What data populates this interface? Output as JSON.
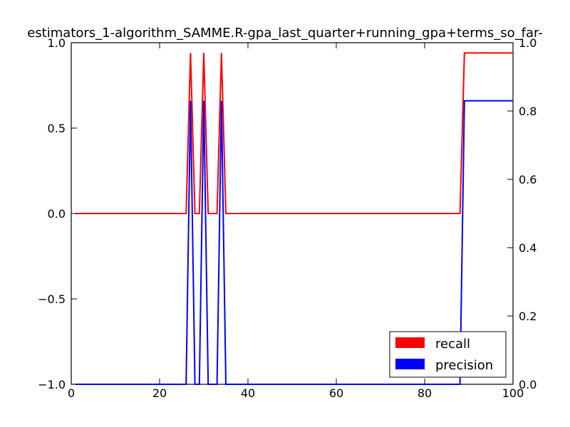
{
  "chart_data": {
    "type": "line",
    "title": "estimators_1-algorithm_SAMME.R-gpa_last_quarter+running_gpa+terms_so_far-",
    "xlabel": "",
    "ylabel": "",
    "xlim": [
      0,
      100
    ],
    "ylim_left": [
      -1.0,
      1.0
    ],
    "ylim_right": [
      0.0,
      1.0
    ],
    "x_ticks": [
      0,
      20,
      40,
      60,
      80,
      100
    ],
    "x_tick_labels": [
      "0",
      "20",
      "40",
      "60",
      "80",
      "100"
    ],
    "y_left_ticks": [
      -1.0,
      -0.5,
      0.0,
      0.5,
      1.0
    ],
    "y_left_tick_labels": [
      "−1.0",
      "−0.5",
      "0.0",
      "0.5",
      "1.0"
    ],
    "y_right_ticks": [
      0.0,
      0.2,
      0.4,
      0.6,
      0.8,
      1.0
    ],
    "y_right_tick_labels": [
      "0.0",
      "0.2",
      "0.4",
      "0.6",
      "0.8",
      "1.0"
    ],
    "grid": false,
    "legend_position": "bottom-right",
    "series": [
      {
        "name": "recall",
        "color": "#ff0000",
        "axis": "left",
        "points": [
          [
            1,
            0.0
          ],
          [
            26,
            0.0
          ],
          [
            27,
            0.94
          ],
          [
            28,
            0.0
          ],
          [
            29,
            0.0
          ],
          [
            30,
            0.94
          ],
          [
            31,
            0.0
          ],
          [
            33,
            0.0
          ],
          [
            34,
            0.94
          ],
          [
            35,
            0.0
          ],
          [
            88,
            0.0
          ],
          [
            89,
            0.94
          ],
          [
            100,
            0.94
          ]
        ]
      },
      {
        "name": "precision",
        "color": "#0000ff",
        "axis": "right",
        "points": [
          [
            1,
            0.0
          ],
          [
            26,
            0.0
          ],
          [
            27,
            0.83
          ],
          [
            28,
            0.0
          ],
          [
            29,
            0.0
          ],
          [
            30,
            0.83
          ],
          [
            31,
            0.0
          ],
          [
            33,
            0.0
          ],
          [
            34,
            0.83
          ],
          [
            35,
            0.0
          ],
          [
            88,
            0.0
          ],
          [
            89,
            0.83
          ],
          [
            100,
            0.83
          ]
        ]
      }
    ]
  }
}
